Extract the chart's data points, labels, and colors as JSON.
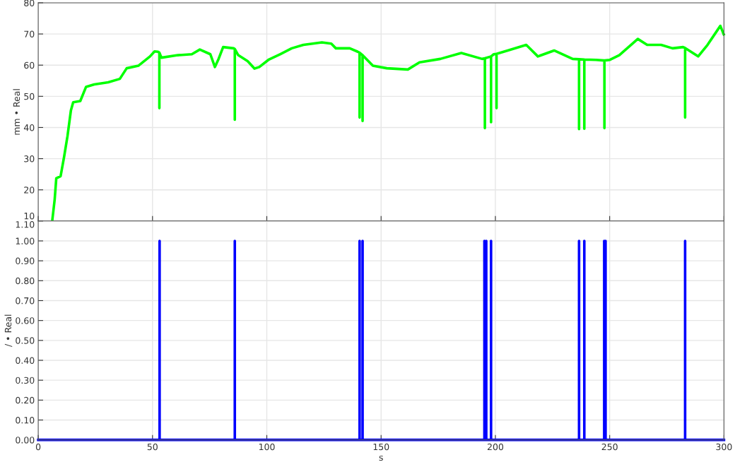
{
  "chart_data": [
    {
      "type": "line",
      "ylabel": "mm • Real",
      "xlim": [
        0,
        300
      ],
      "xticks": [
        0,
        50,
        100,
        150,
        200,
        250,
        300
      ],
      "ylim": [
        10,
        80
      ],
      "yticks": [
        10,
        20,
        30,
        40,
        50,
        60,
        70,
        80
      ],
      "grid": true,
      "tick_labels": "y",
      "marker": "none",
      "line_style": "solid",
      "series": [
        {
          "color": "#00ff00",
          "x": [
            6.2,
            7.2,
            7.9,
            9.8,
            11.3,
            12.8,
            14.3,
            15.3,
            18.4,
            20.9,
            24.5,
            30.6,
            35.7,
            38.7,
            43.8,
            48.9,
            50.9,
            52.4,
            53.0,
            53.0,
            53.0,
            53.9,
            61.1,
            67.2,
            70.7,
            75.3,
            77.3,
            78.9,
            80.9,
            85.5,
            86.0,
            86.0,
            86.0,
            87.5,
            91.6,
            94.6,
            96.7,
            100.7,
            105.8,
            110.9,
            116.0,
            124.1,
            128.2,
            130.2,
            136.3,
            139.8,
            140.6,
            140.6,
            140.6,
            141.9,
            141.9,
            141.9,
            142.4,
            146.4,
            152.5,
            161.7,
            166.8,
            175.9,
            185.1,
            194.2,
            195.4,
            195.4,
            195.4,
            198.1,
            198.1,
            198.1,
            199.3,
            200.5,
            200.5,
            200.5,
            205.4,
            213.5,
            218.6,
            225.7,
            233.8,
            236.6,
            236.6,
            236.6,
            238.9,
            238.9,
            238.9,
            244.0,
            247.7,
            247.7,
            247.7,
            250.1,
            254.2,
            262.3,
            266.4,
            272.5,
            277.5,
            282.1,
            283.0,
            283.0,
            283.0,
            284.7,
            288.7,
            292.8,
            298.4,
            299.9
          ],
          "values": [
            10.5,
            16.9,
            23.7,
            24.4,
            30.5,
            37.2,
            45.5,
            48.1,
            48.5,
            53.0,
            53.8,
            54.5,
            55.6,
            59.0,
            59.8,
            62.8,
            64.4,
            64.3,
            64.0,
            46.2,
            64.0,
            62.4,
            63.2,
            63.5,
            65.0,
            63.5,
            59.4,
            62.0,
            65.8,
            65.4,
            65.2,
            42.5,
            65.2,
            63.2,
            61.3,
            58.9,
            59.4,
            61.7,
            63.5,
            65.4,
            66.5,
            67.3,
            66.9,
            65.4,
            65.4,
            64.3,
            64.0,
            43.2,
            64.0,
            63.2,
            42.1,
            63.2,
            62.8,
            59.8,
            59.0,
            58.6,
            60.9,
            62.0,
            63.9,
            62.0,
            62.2,
            39.8,
            62.2,
            62.8,
            41.7,
            62.8,
            63.5,
            63.6,
            46.2,
            63.6,
            64.7,
            66.5,
            62.8,
            64.7,
            62.0,
            61.9,
            39.5,
            61.9,
            61.8,
            39.6,
            61.8,
            61.7,
            61.5,
            39.8,
            61.5,
            61.7,
            63.2,
            68.4,
            66.5,
            66.5,
            65.4,
            65.8,
            65.5,
            43.2,
            65.5,
            64.7,
            62.8,
            66.5,
            72.6,
            69.9
          ]
        }
      ]
    },
    {
      "type": "line",
      "xlabel": "s",
      "ylabel": "/ • Real",
      "xlim": [
        0,
        300
      ],
      "xticks": [
        0,
        50,
        100,
        150,
        200,
        250,
        300
      ],
      "ylim": [
        0,
        1.1
      ],
      "yticks": [
        {
          "value": 0,
          "label": "0.00"
        },
        {
          "value": 0.1,
          "label": "0.10"
        },
        {
          "value": 0.2,
          "label": "0.20"
        },
        {
          "value": 0.3,
          "label": "0.30"
        },
        {
          "value": 0.4,
          "label": "0.40"
        },
        {
          "value": 0.5,
          "label": "0.50"
        },
        {
          "value": 0.6,
          "label": "0.60"
        },
        {
          "value": 0.7,
          "label": "0.70"
        },
        {
          "value": 0.8,
          "label": "0.80"
        },
        {
          "value": 0.9,
          "label": "0.90"
        },
        {
          "value": 1.0,
          "label": "1.00"
        },
        {
          "value": 1.1,
          "label": "1.10"
        }
      ],
      "grid": true,
      "marker": "none",
      "line_style": "solid",
      "series": [
        {
          "color": "#0000ff",
          "x": [
            0,
            53.1,
            53.1,
            53.1,
            86.0,
            86.0,
            86.0,
            140.6,
            140.6,
            140.6,
            141.9,
            141.9,
            141.9,
            195.2,
            195.2,
            195.2,
            196.0,
            196.0,
            196.0,
            198.1,
            198.1,
            198.1,
            236.6,
            236.6,
            236.6,
            238.9,
            238.9,
            238.9,
            247.6,
            247.6,
            247.6,
            248.2,
            248.2,
            248.2,
            283.0,
            283.0,
            283.0,
            300
          ],
          "values": [
            0,
            0,
            1,
            0,
            0,
            1,
            0,
            0,
            1,
            0,
            0,
            1,
            0,
            0,
            1,
            0,
            0,
            1,
            0,
            0,
            1,
            0,
            0,
            1,
            0,
            0,
            1,
            0,
            0,
            1,
            0,
            0,
            1,
            0,
            0,
            1,
            0,
            0
          ]
        }
      ]
    }
  ]
}
